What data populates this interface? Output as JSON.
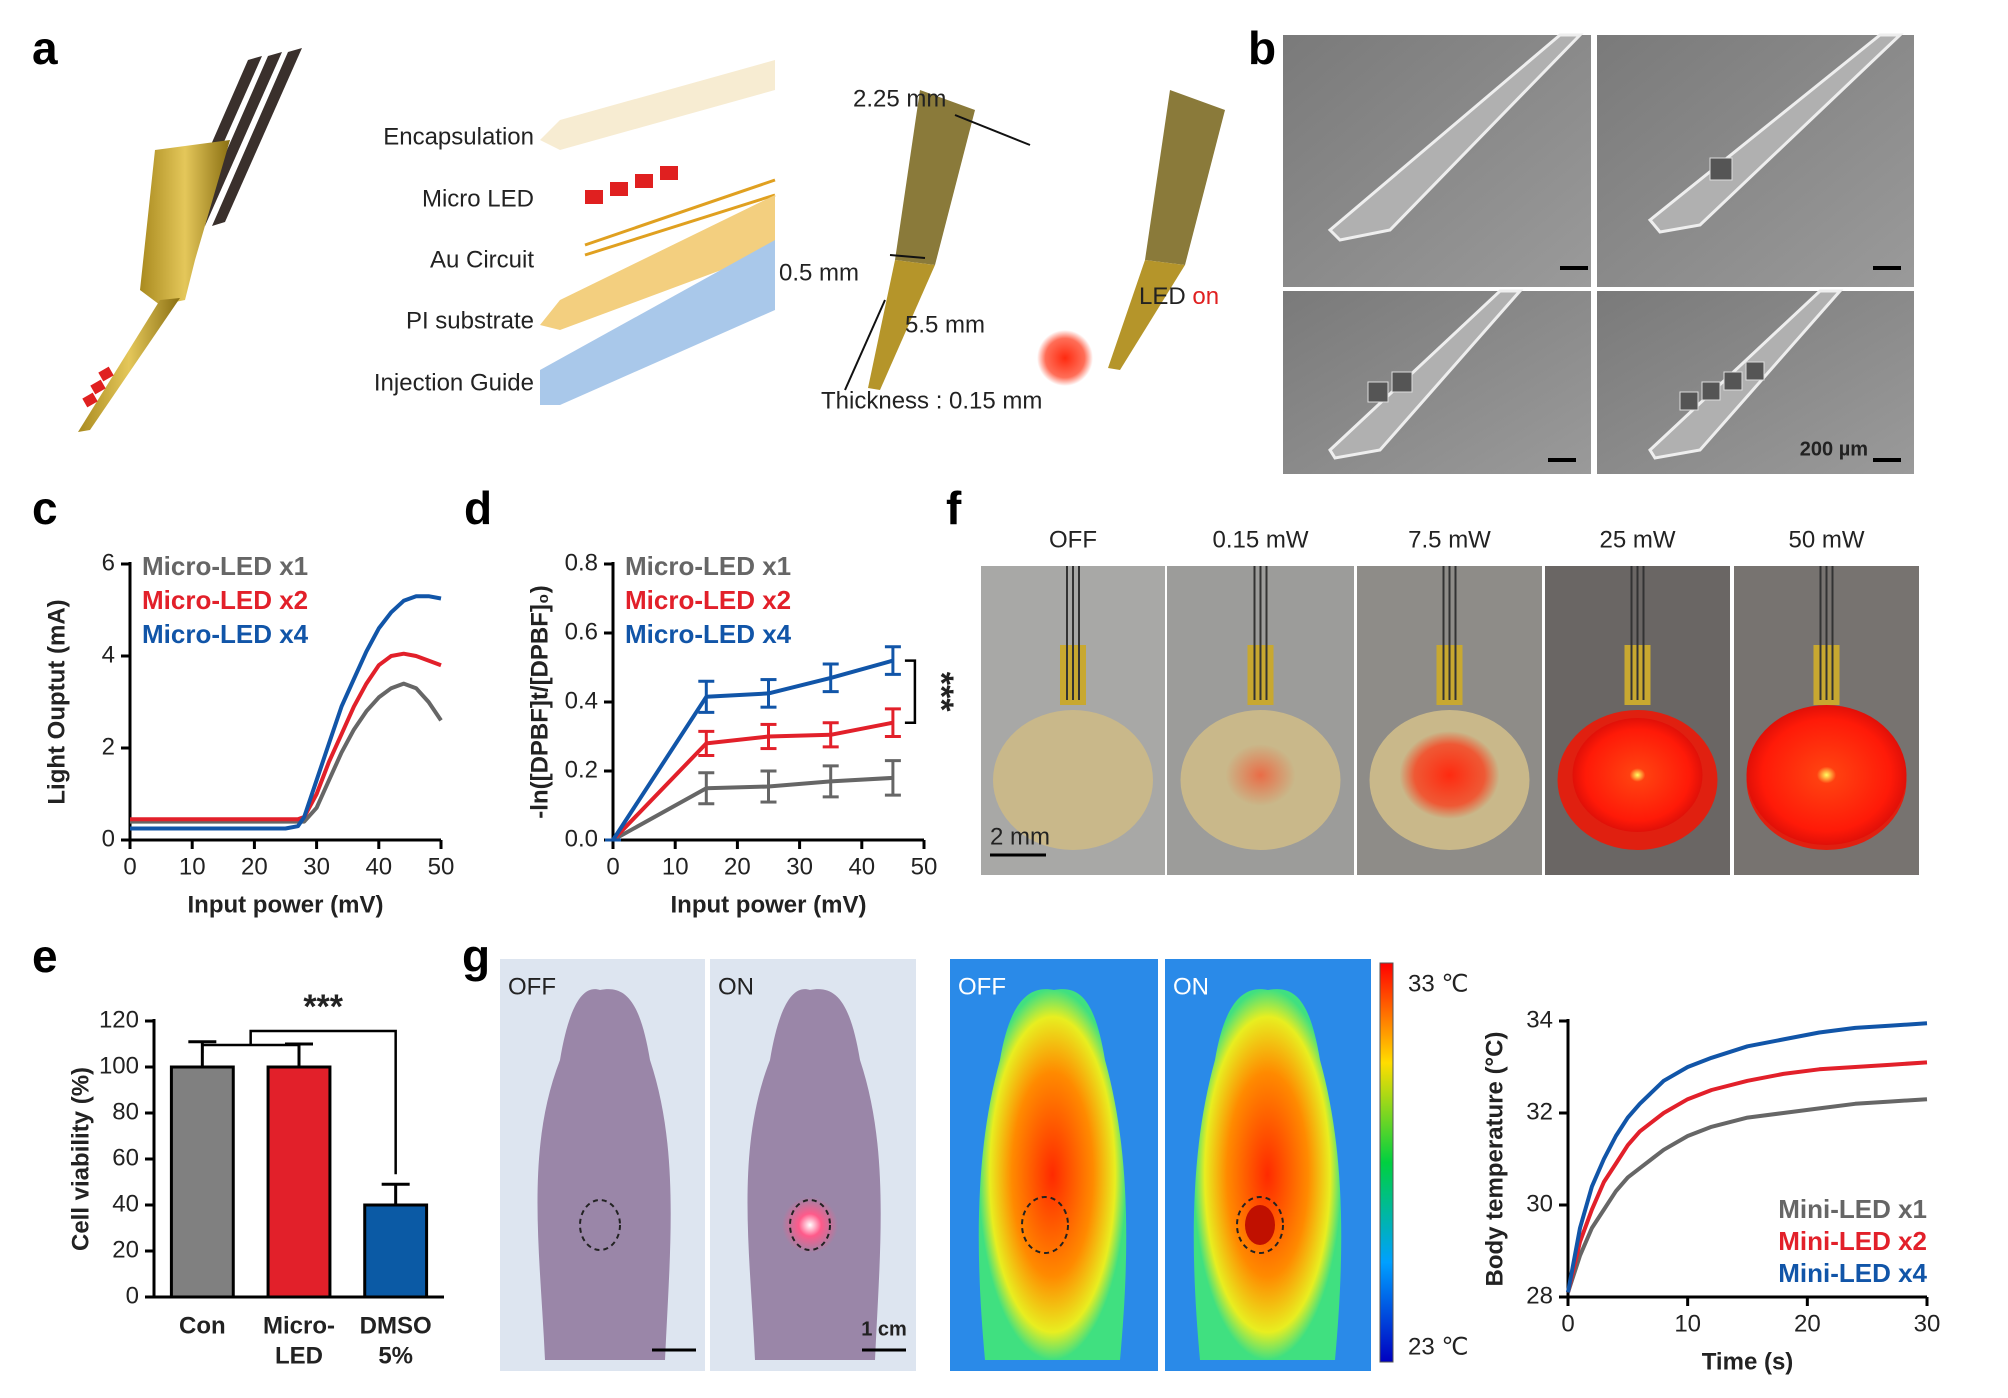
{
  "panel_labels": [
    "a",
    "b",
    "c",
    "d",
    "e",
    "f",
    "g"
  ],
  "panel_a": {
    "layers": [
      "Encapsulation",
      "Micro LED",
      "Au Circuit",
      "PI substrate",
      "Injection Guide"
    ],
    "dimensions": [
      "2.25 mm",
      "0.5 mm",
      "5.5 mm",
      "Thickness : 0.15 mm"
    ],
    "led_label": "LED",
    "led_state": "on"
  },
  "panel_b": {
    "scale_bar": "200 µm"
  },
  "panel_f": {
    "conditions": [
      "OFF",
      "0.15 mW",
      "7.5 mW",
      "25 mW",
      "50 mW"
    ],
    "scale_bar": "2 mm"
  },
  "panel_g": {
    "photo_labels": [
      "OFF",
      "ON",
      "OFF",
      "ON"
    ],
    "scale_bar": "1 cm",
    "colorbar_max": "33 ℃",
    "colorbar_min": "23 ℃"
  },
  "chart_data": [
    {
      "type": "line",
      "xlabel": "Input power (mV)",
      "ylabel": "Light Ouptut (mA)",
      "x": [
        0,
        5,
        10,
        15,
        20,
        25,
        27,
        28,
        30,
        32,
        34,
        36,
        38,
        40,
        42,
        44,
        46,
        48,
        50
      ],
      "series": [
        {
          "name": "Micro-LED x1",
          "color": "#666666",
          "values": [
            0.4,
            0.4,
            0.4,
            0.4,
            0.4,
            0.4,
            0.4,
            0.4,
            0.7,
            1.3,
            1.9,
            2.4,
            2.8,
            3.1,
            3.3,
            3.4,
            3.3,
            3.0,
            2.6
          ]
        },
        {
          "name": "Micro-LED x2",
          "color": "#e2202a",
          "values": [
            0.45,
            0.45,
            0.45,
            0.45,
            0.45,
            0.45,
            0.45,
            0.5,
            1.0,
            1.7,
            2.3,
            2.9,
            3.4,
            3.8,
            4.0,
            4.05,
            4.0,
            3.9,
            3.8
          ]
        },
        {
          "name": "Micro-LED x4",
          "color": "#1155a8",
          "values": [
            0.25,
            0.25,
            0.25,
            0.25,
            0.25,
            0.25,
            0.3,
            0.5,
            1.3,
            2.1,
            2.9,
            3.5,
            4.1,
            4.6,
            4.95,
            5.2,
            5.3,
            5.3,
            5.25
          ]
        }
      ],
      "xlim": [
        0,
        50
      ],
      "ylim": [
        0,
        6
      ],
      "xticks": [
        0,
        10,
        20,
        30,
        40,
        50
      ],
      "yticks": [
        0,
        2,
        4,
        6
      ],
      "legend": "upper-left"
    },
    {
      "type": "line",
      "xlabel": "Input power (mV)",
      "ylabel": "-ln([DPBF]t/[DPBF]₀)",
      "x": [
        0,
        15,
        25,
        35,
        45
      ],
      "series": [
        {
          "name": "Micro-LED x1",
          "color": "#666666",
          "values": [
            0,
            0.15,
            0.155,
            0.17,
            0.18
          ],
          "errors": [
            0,
            0.045,
            0.045,
            0.045,
            0.05
          ]
        },
        {
          "name": "Micro-LED x2",
          "color": "#e2202a",
          "values": [
            0,
            0.28,
            0.3,
            0.305,
            0.34
          ],
          "errors": [
            0,
            0.035,
            0.035,
            0.035,
            0.04
          ]
        },
        {
          "name": "Micro-LED x4",
          "color": "#1155a8",
          "values": [
            0,
            0.415,
            0.425,
            0.47,
            0.52
          ],
          "errors": [
            0,
            0.045,
            0.04,
            0.04,
            0.04
          ]
        }
      ],
      "xlim": [
        0,
        50
      ],
      "ylim": [
        0,
        0.8
      ],
      "xticks": [
        0,
        10,
        20,
        30,
        40,
        50
      ],
      "yticks": [
        {
          "value": 0,
          "label": "0.0"
        },
        0.2,
        0.4,
        0.6,
        0.8
      ],
      "legend": "upper-left",
      "annotation": "***"
    },
    {
      "type": "bar",
      "ylabel": "Cell viability (%)",
      "categories": [
        [
          "Con"
        ],
        [
          "Micro-",
          "LED"
        ],
        [
          "DMSO",
          "5%"
        ]
      ],
      "values": [
        100,
        100,
        40
      ],
      "errors": [
        11,
        10,
        9
      ],
      "colors": [
        "#808080",
        "#e2202a",
        "#0b5aa5"
      ],
      "ylim": [
        0,
        120
      ],
      "yticks": [
        0,
        20,
        40,
        60,
        80,
        100,
        120
      ],
      "annotation": "***"
    },
    {
      "type": "line",
      "xlabel": "Time (s)",
      "ylabel": "Body temperature (°C)",
      "x": [
        0,
        1,
        2,
        3,
        4,
        5,
        6,
        8,
        10,
        12,
        15,
        18,
        21,
        24,
        27,
        30
      ],
      "series": [
        {
          "name": "Mini-LED x1",
          "color": "#666666",
          "values": [
            28.1,
            28.9,
            29.5,
            29.9,
            30.3,
            30.6,
            30.8,
            31.2,
            31.5,
            31.7,
            31.9,
            32.0,
            32.1,
            32.2,
            32.25,
            32.3
          ]
        },
        {
          "name": "Mini-LED x2",
          "color": "#e2202a",
          "values": [
            28.1,
            29.2,
            29.9,
            30.5,
            30.9,
            31.3,
            31.6,
            32.0,
            32.3,
            32.5,
            32.7,
            32.85,
            32.95,
            33.0,
            33.05,
            33.1
          ]
        },
        {
          "name": "Mini-LED x4",
          "color": "#1155a8",
          "values": [
            28.1,
            29.5,
            30.4,
            31.0,
            31.5,
            31.9,
            32.2,
            32.7,
            33.0,
            33.2,
            33.45,
            33.6,
            33.75,
            33.85,
            33.9,
            33.95
          ]
        }
      ],
      "xlim": [
        0,
        30
      ],
      "ylim": [
        28,
        34
      ],
      "xticks": [
        0,
        10,
        20,
        30
      ],
      "yticks": [
        28,
        30,
        32,
        34
      ],
      "legend": "lower-right"
    }
  ]
}
